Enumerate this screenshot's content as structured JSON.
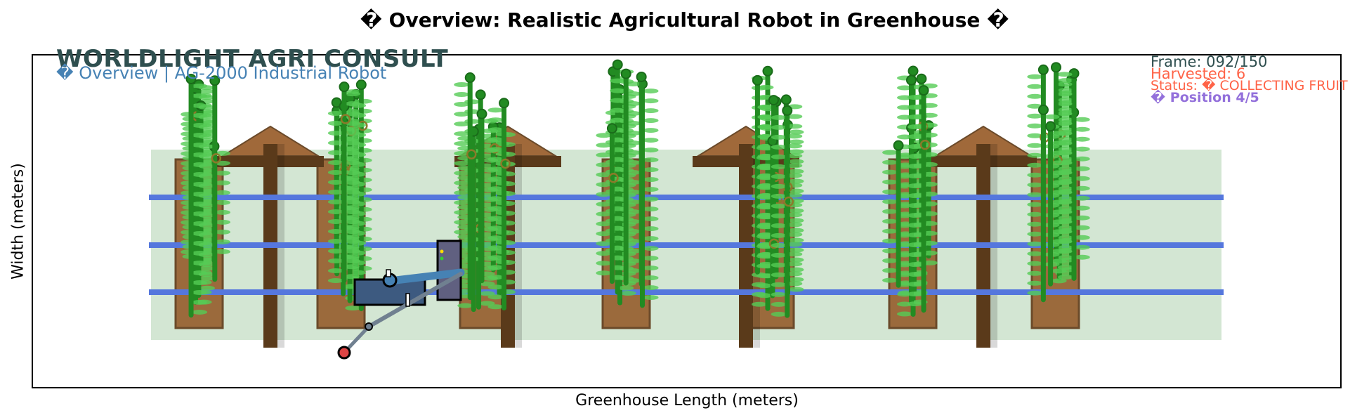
{
  "figure": {
    "title": "� Overview: Realistic Agricultural Robot in Greenhouse �",
    "xlabel": "Greenhouse Length (meters)",
    "ylabel": "Width (meters)"
  },
  "branding": {
    "company": "WORLDLIGHT AGRI CONSULT",
    "subtitle": "� Overview | AG-2000 Industrial Robot"
  },
  "hud": {
    "frame": "Frame: 092/150",
    "harvested": "Harvested: 6",
    "status": "Status: � COLLECTING FRUIT",
    "position": "� Position 4/5"
  },
  "colors": {
    "floor": "#d3e6d3",
    "rail": "#5577dd",
    "planter": "#9b6a3c",
    "planter_edge": "#6b4a2a",
    "post": "#5a3a1a",
    "plant": "#228b22",
    "leaf": "#55cc55",
    "robot_body": "#3d5a80",
    "robot_arm": "#708090",
    "arm_blue": "#4682b4",
    "brand": "#2f4f4f",
    "subtitle": "#4682b4",
    "harvest": "#ff6347",
    "position": "#9370db"
  },
  "icons": [
    "robot-icon",
    "gripper-icon",
    "fruit-icon"
  ]
}
